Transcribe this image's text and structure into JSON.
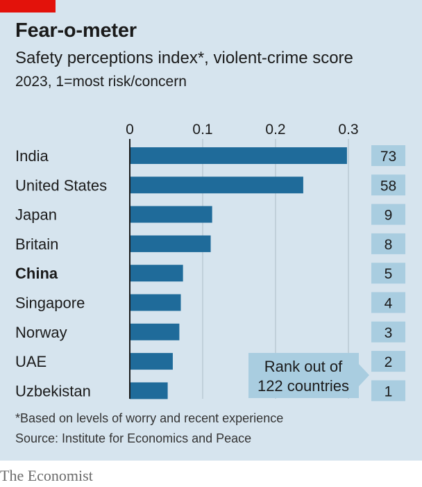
{
  "header": {
    "title": "Fear-o-meter",
    "subtitle": "Safety perceptions index*, violent-crime score",
    "subtitle2": "2023, 1=most risk/concern"
  },
  "footer": {
    "footnote": "*Based on levels of worry and recent experience",
    "source": "Source: Institute for Economics and Peace",
    "brand": "The Economist"
  },
  "colors": {
    "panel": "#d6e4ee",
    "bar": "#1f6b9a",
    "badge": "#a9cde0",
    "accent_red": "#e3120b"
  },
  "chart_data": {
    "type": "bar",
    "orientation": "horizontal",
    "x_ticks": [
      "0",
      "0.1",
      "0.2",
      "0.3"
    ],
    "xlim": [
      0,
      0.33
    ],
    "grid": true,
    "categories": [
      "India",
      "United States",
      "Japan",
      "Britain",
      "China",
      "Singapore",
      "Norway",
      "UAE",
      "Uzbekistan"
    ],
    "highlight": "China",
    "values": [
      0.298,
      0.238,
      0.113,
      0.111,
      0.073,
      0.07,
      0.068,
      0.059,
      0.052
    ],
    "ranks": [
      "73",
      "58",
      "9",
      "8",
      "5",
      "4",
      "3",
      "2",
      "1"
    ],
    "rank_label_lines": [
      "Rank out of",
      "122 countries"
    ]
  }
}
